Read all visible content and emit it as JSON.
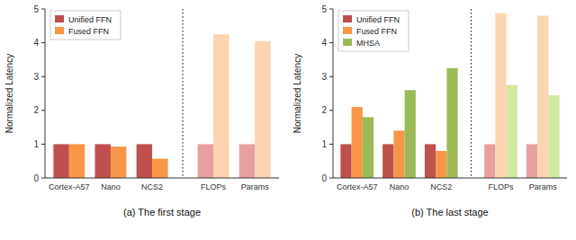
{
  "chart_data": [
    {
      "type": "bar",
      "title": "(a) The first stage",
      "ylabel": "Normalized Latency",
      "categories": [
        "Cortex-A57",
        "Nano",
        "NCS2",
        "FLOPs",
        "Params"
      ],
      "series": [
        {
          "name": "Unified FFN",
          "color": "#c0504d",
          "colors": [
            "#c0504d",
            "#c0504d",
            "#c0504d",
            "#e8a09f",
            "#e8a09f"
          ],
          "values": [
            1.0,
            1.0,
            1.0,
            1.0,
            1.0
          ]
        },
        {
          "name": "Fused FFN",
          "color": "#f79646",
          "colors": [
            "#f79646",
            "#f79646",
            "#f79646",
            "#fcd5b0",
            "#fcd5b0"
          ],
          "values": [
            1.0,
            0.93,
            0.57,
            4.25,
            4.05
          ]
        }
      ],
      "ylim": [
        0,
        5
      ],
      "yticks": [
        0,
        1,
        2,
        3,
        4,
        5
      ],
      "grid": false,
      "legend": "upper left"
    },
    {
      "type": "bar",
      "title": "(b) The last stage",
      "ylabel": "Normalized Latency",
      "categories": [
        "Cortex-A57",
        "Nano",
        "NCS2",
        "FLOPs",
        "Params"
      ],
      "series": [
        {
          "name": "Unified FFN",
          "color": "#c0504d",
          "colors": [
            "#c0504d",
            "#c0504d",
            "#c0504d",
            "#e8a09f",
            "#e8a09f"
          ],
          "values": [
            1.0,
            1.0,
            1.0,
            1.0,
            1.0
          ]
        },
        {
          "name": "Fused FFN",
          "color": "#f79646",
          "colors": [
            "#f79646",
            "#f79646",
            "#f79646",
            "#fcd5b0",
            "#fcd5b0"
          ],
          "values": [
            2.1,
            1.4,
            0.8,
            4.88,
            4.8
          ]
        },
        {
          "name": "MHSA",
          "color": "#9bbb59",
          "colors": [
            "#9bbb59",
            "#9bbb59",
            "#9bbb59",
            "#d0e8a0",
            "#d0e8a0"
          ],
          "values": [
            1.8,
            2.6,
            3.25,
            2.75,
            2.45
          ]
        }
      ],
      "ylim": [
        0,
        5
      ],
      "yticks": [
        0,
        1,
        2,
        3,
        4,
        5
      ],
      "grid": false,
      "legend": "upper left"
    }
  ]
}
